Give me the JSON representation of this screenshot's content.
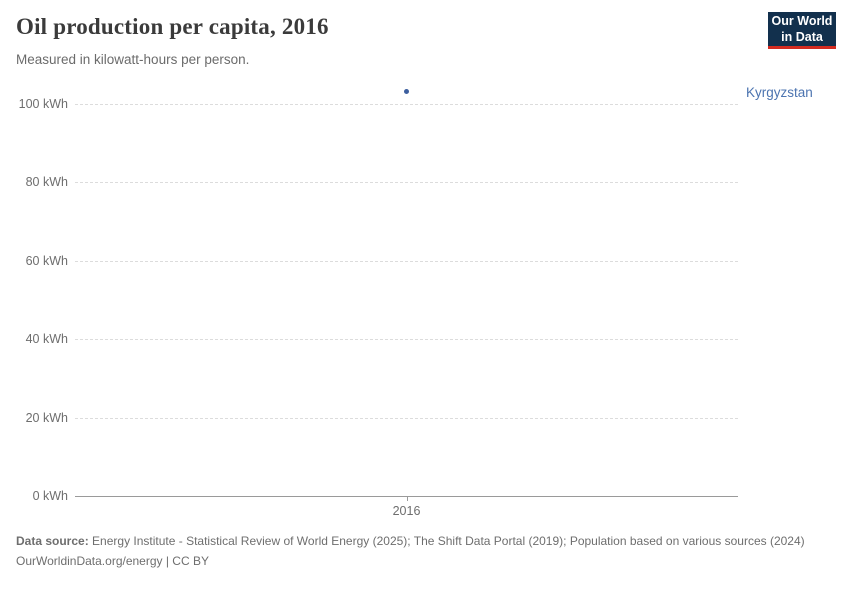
{
  "header": {
    "title": "Oil production per capita, 2016",
    "subtitle": "Measured in kilowatt-hours per person."
  },
  "logo": {
    "line1": "Our World",
    "line2": "in Data"
  },
  "colors": {
    "point": "#3d5f9f",
    "entity_label": "#4c74b0",
    "logo_bg": "#12304d",
    "logo_stripe": "#d42b20",
    "gridline": "#dcdcdc",
    "axis_text": "#6e6e6e"
  },
  "chart_data": {
    "type": "scatter",
    "title": "Oil production per capita, 2016",
    "subtitle": "Measured in kilowatt-hours per person.",
    "unit": "kWh",
    "x": [
      2016
    ],
    "series": [
      {
        "name": "Kyrgyzstan",
        "values": [
          103.3
        ]
      }
    ],
    "ylim": [
      0,
      100
    ],
    "yticks": [
      {
        "value": 0,
        "label": "0 kWh"
      },
      {
        "value": 20,
        "label": "20 kWh"
      },
      {
        "value": 40,
        "label": "40 kWh"
      },
      {
        "value": 60,
        "label": "60 kWh"
      },
      {
        "value": 80,
        "label": "80 kWh"
      },
      {
        "value": 100,
        "label": "100 kWh"
      }
    ],
    "xticks": [
      {
        "value": 2016,
        "label": "2016"
      }
    ],
    "grid": "horizontal-dashed",
    "legend_position": "entity-label-right-of-plot"
  },
  "footer": {
    "data_source_label": "Data source:",
    "data_source_text": "Energy Institute - Statistical Review of World Energy (2025); The Shift Data Portal (2019); Population based on various sources (2024)",
    "link_line": "OurWorldinData.org/energy | CC BY"
  }
}
